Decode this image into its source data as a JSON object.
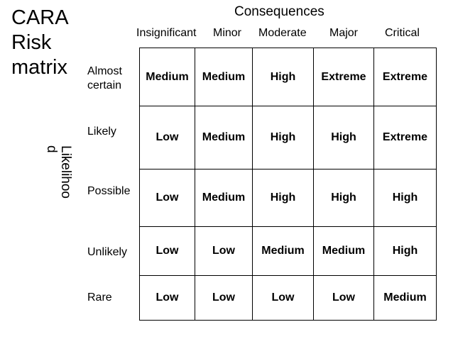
{
  "title_lines": [
    "CARA",
    "Risk",
    "matrix"
  ],
  "consequences_label": "Consequences",
  "likelihood_label": "Likelihoo\nd",
  "columns": [
    "Insignificant",
    "Minor",
    "Moderate",
    "Major",
    "Critical"
  ],
  "rows": [
    {
      "label": "Almost\ncertain",
      "cells": [
        "Medium",
        "Medium",
        "High",
        "Extreme",
        "Extreme"
      ]
    },
    {
      "label": "Likely",
      "cells": [
        "Low",
        "Medium",
        "High",
        "High",
        "Extreme"
      ]
    },
    {
      "label": "Possible",
      "cells": [
        "Low",
        "Medium",
        "High",
        "High",
        "High"
      ]
    },
    {
      "label": "Unlikely",
      "cells": [
        "Low",
        "Low",
        "Medium",
        "Medium",
        "High"
      ]
    },
    {
      "label": "Rare",
      "cells": [
        "Low",
        "Low",
        "Low",
        "Low",
        "Medium"
      ]
    }
  ]
}
